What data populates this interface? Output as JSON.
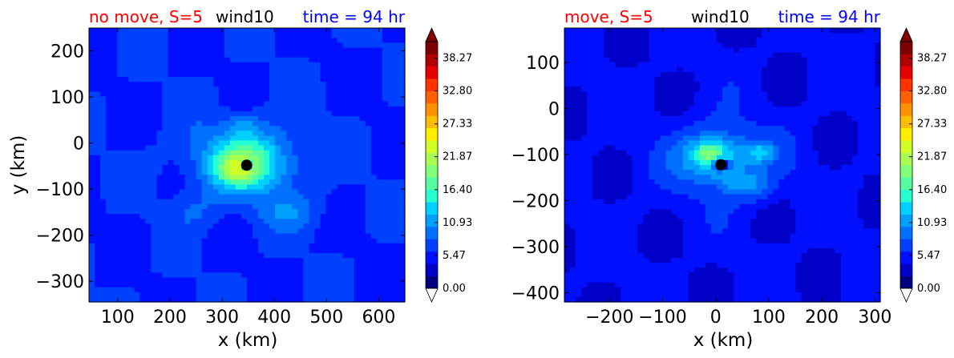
{
  "colorbar": {
    "colors": [
      "#00007f",
      "#0000c8",
      "#0010ff",
      "#0040ff",
      "#0070ff",
      "#00a0ff",
      "#00d0ff",
      "#26ffd0",
      "#55ffa0",
      "#80ff77",
      "#a8ff4f",
      "#d0ff26",
      "#ffee00",
      "#ffbf00",
      "#ff9100",
      "#ff6200",
      "#ff3300",
      "#e60000",
      "#b00000",
      "#7f0000"
    ],
    "tick_labels": [
      "0.00",
      "5.47",
      "10.93",
      "16.40",
      "21.87",
      "27.33",
      "32.80",
      "38.27"
    ]
  },
  "chart_data": [
    {
      "type": "heatmap",
      "title_parts": [
        {
          "text": "no move, S=5",
          "color": "#ff0000"
        },
        {
          "text": "wind10",
          "color": "#000000"
        },
        {
          "text": "time = 94 hr",
          "color": "#0000ff"
        }
      ],
      "xlabel": "x (km)",
      "ylabel": "y (km)",
      "xlim": [
        45,
        650
      ],
      "ylim": [
        -345,
        250
      ],
      "xticks": [
        100,
        200,
        300,
        400,
        500,
        600
      ],
      "yticks": [
        200,
        100,
        0,
        -100,
        -200,
        -300
      ],
      "center": {
        "x": 347,
        "y": -48
      },
      "colorbar_range": [
        0,
        41
      ],
      "colorbar_ticks": [
        0.0,
        5.47,
        10.93,
        16.4,
        21.87,
        27.33,
        32.8,
        38.27
      ],
      "field": {
        "background": 6,
        "blobs": [
          {
            "x": 347,
            "y": -35,
            "sx": 115,
            "sy": 85,
            "a": 5
          },
          {
            "x": 345,
            "y": -45,
            "sx": 70,
            "sy": 55,
            "a": 8
          },
          {
            "x": 330,
            "y": -60,
            "sx": 35,
            "sy": 28,
            "a": 6
          },
          {
            "x": 340,
            "y": 40,
            "sx": 30,
            "sy": 25,
            "a": 3
          },
          {
            "x": 430,
            "y": -150,
            "sx": 60,
            "sy": 40,
            "a": 3
          },
          {
            "x": 250,
            "y": -150,
            "sx": 50,
            "sy": 40,
            "a": 2
          },
          {
            "x": 347,
            "y": -48,
            "sx": 10,
            "sy": 10,
            "a": -16
          }
        ]
      }
    },
    {
      "type": "heatmap",
      "title_parts": [
        {
          "text": "move, S=5",
          "color": "#ff0000"
        },
        {
          "text": "wind10",
          "color": "#000000"
        },
        {
          "text": "time = 94 hr",
          "color": "#0000ff"
        }
      ],
      "xlabel": "x (km)",
      "ylabel": "",
      "xlim": [
        -285,
        310
      ],
      "ylim": [
        -420,
        175
      ],
      "xticks": [
        -200,
        -100,
        0,
        100,
        200,
        300
      ],
      "yticks": [
        100,
        0,
        -100,
        -200,
        -300,
        -400
      ],
      "center": {
        "x": 10,
        "y": -122
      },
      "colorbar_range": [
        0,
        41
      ],
      "colorbar_ticks": [
        0.0,
        5.47,
        10.93,
        16.4,
        21.87,
        27.33,
        32.8,
        38.27
      ],
      "field": {
        "background": 4.5,
        "blobs": [
          {
            "x": 10,
            "y": -110,
            "sx": 110,
            "sy": 85,
            "a": 4.5
          },
          {
            "x": 0,
            "y": -105,
            "sx": 55,
            "sy": 45,
            "a": 7
          },
          {
            "x": -15,
            "y": -95,
            "sx": 25,
            "sy": 22,
            "a": 6
          },
          {
            "x": 85,
            "y": -95,
            "sx": 25,
            "sy": 20,
            "a": 5
          },
          {
            "x": 70,
            "y": -170,
            "sx": 35,
            "sy": 30,
            "a": 4
          },
          {
            "x": 30,
            "y": -160,
            "sx": 25,
            "sy": 22,
            "a": 3
          },
          {
            "x": 10,
            "y": -122,
            "sx": 16,
            "sy": 12,
            "a": -12
          }
        ]
      }
    }
  ]
}
